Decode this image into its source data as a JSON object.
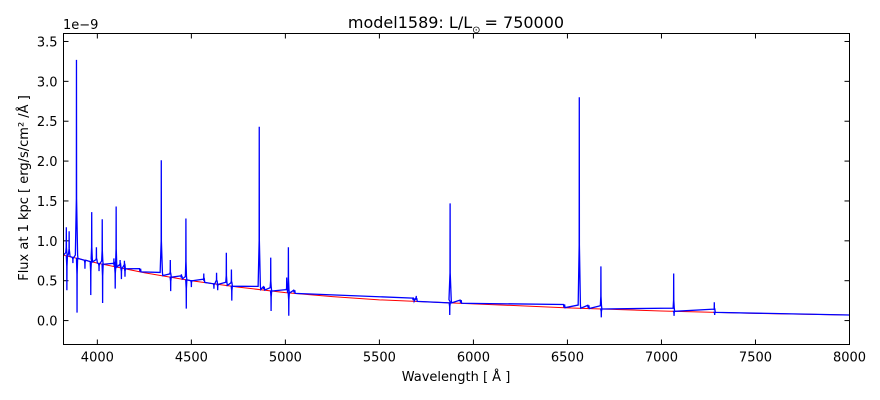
{
  "chart_data": {
    "type": "line",
    "title": "model1589: L/L",
    "title_sub": "⊙",
    "title_value": "= 750000",
    "xlabel": "Wavelength [ Å ]",
    "ylabel": "Flux at 1 kpc [ erg/s/cm² /Å ]",
    "y_offset_label": "1e−9",
    "xlim": [
      3820,
      8000
    ],
    "ylim": [
      -0.3,
      3.6
    ],
    "xticks": [
      4000,
      4500,
      5000,
      5500,
      6000,
      6500,
      7000,
      7500,
      8000
    ],
    "yticks": [
      0.0,
      0.5,
      1.0,
      1.5,
      2.0,
      2.5,
      3.0,
      3.5
    ],
    "ytick_labels": [
      "0.0",
      "0.5",
      "1.0",
      "1.5",
      "2.0",
      "2.5",
      "3.0",
      "3.5"
    ],
    "series": [
      {
        "name": "continuum",
        "color": "#ff0000",
        "points": [
          [
            3820,
            0.82
          ],
          [
            4000,
            0.72
          ],
          [
            4250,
            0.6
          ],
          [
            4500,
            0.5
          ],
          [
            4750,
            0.42
          ],
          [
            5000,
            0.35
          ],
          [
            5250,
            0.3
          ],
          [
            5500,
            0.26
          ],
          [
            6000,
            0.21
          ],
          [
            6500,
            0.16
          ],
          [
            7000,
            0.12
          ],
          [
            7500,
            0.09
          ],
          [
            8000,
            0.07
          ]
        ]
      },
      {
        "name": "spectrum",
        "color": "#0000ff",
        "features": [
          [
            3835,
            1.17
          ],
          [
            3838,
            0.38
          ],
          [
            3850,
            1.12
          ],
          [
            3870,
            0.72
          ],
          [
            3889,
            3.27
          ],
          [
            3892,
            0.1
          ],
          [
            3934,
            0.65
          ],
          [
            3965,
            0.32
          ],
          [
            3970,
            1.36
          ],
          [
            3995,
            0.92
          ],
          [
            4009,
            0.62
          ],
          [
            4026,
            1.27
          ],
          [
            4028,
            0.22
          ],
          [
            4088,
            0.78
          ],
          [
            4095,
            0.4
          ],
          [
            4100,
            1.43
          ],
          [
            4121,
            0.76
          ],
          [
            4128,
            0.52
          ],
          [
            4144,
            0.75
          ],
          [
            4147,
            0.55
          ],
          [
            4227,
            0.63
          ],
          [
            4340,
            2.01
          ],
          [
            4388,
            0.76
          ],
          [
            4390,
            0.37
          ],
          [
            4447,
            0.58
          ],
          [
            4471,
            1.28
          ],
          [
            4473,
            0.15
          ],
          [
            4500,
            0.42
          ],
          [
            4566,
            0.59
          ],
          [
            4620,
            0.4
          ],
          [
            4634,
            0.6
          ],
          [
            4640,
            0.38
          ],
          [
            4686,
            0.85
          ],
          [
            4713,
            0.64
          ],
          [
            4715,
            0.25
          ],
          [
            4861,
            2.43
          ],
          [
            4885,
            0.43
          ],
          [
            4922,
            0.79
          ],
          [
            4924,
            0.12
          ],
          [
            5007,
            0.54
          ],
          [
            5016,
            0.92
          ],
          [
            5018,
            0.06
          ],
          [
            5047,
            0.38
          ],
          [
            5680,
            0.29
          ],
          [
            5696,
            0.31
          ],
          [
            5876,
            1.47
          ],
          [
            5874,
            0.07
          ],
          [
            5932,
            0.24
          ],
          [
            6482,
            0.17
          ],
          [
            6563,
            2.8
          ],
          [
            6611,
            0.18
          ],
          [
            6678,
            0.68
          ],
          [
            6680,
            0.04
          ],
          [
            7065,
            0.59
          ],
          [
            7067,
            0.06
          ],
          [
            7281,
            0.23
          ],
          [
            7283,
            0.07
          ]
        ]
      }
    ]
  }
}
